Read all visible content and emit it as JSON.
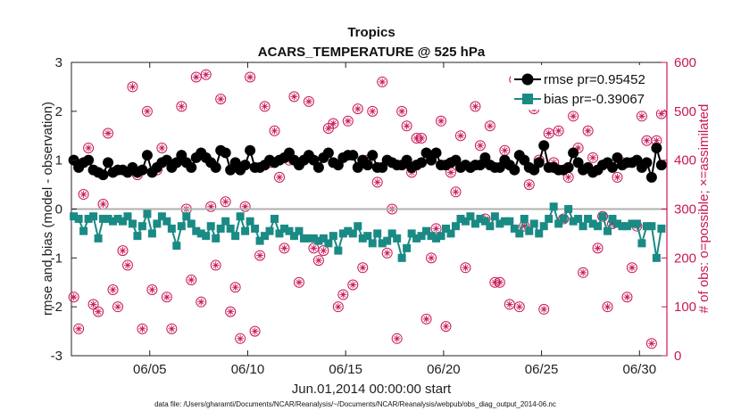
{
  "chart_data": {
    "type": "line",
    "title": "Tropics",
    "subtitle": "ACARS_TEMPERATURE @ 525 hPa",
    "xlabel": "Jun.01,2014 00:00:00 start",
    "ylabel": "rmse and bias (model - observation)",
    "y2label": "# of obs: o=possible; ×=assimilated",
    "xlim": [
      1,
      31.4
    ],
    "ylim": [
      -3,
      3
    ],
    "y2lim": [
      0,
      600
    ],
    "x_ticks": [
      5,
      10,
      15,
      20,
      25,
      30
    ],
    "x_tick_labels": [
      "06/05",
      "06/10",
      "06/15",
      "06/20",
      "06/25",
      "06/30"
    ],
    "y_ticks": [
      -3,
      -2,
      -1,
      0,
      1,
      2,
      3
    ],
    "y2_ticks": [
      0,
      100,
      200,
      300,
      400,
      500,
      600
    ],
    "grid": false,
    "legend": "top-right",
    "colors": {
      "rmse": "#000000",
      "bias": "#1a8a84",
      "obs": "#c8185a",
      "zero": "#b0b0b0"
    },
    "footnote": "data file: /Users/gharamti/Documents/NCAR/Reanalysis/~/Documents/NCAR/Reanalysis/webpub/obs_diag_output_2014-06.nc",
    "series": [
      {
        "name": "rmse pr=0.95452",
        "x": [
          1.12,
          1.37,
          1.62,
          1.87,
          2.12,
          2.37,
          2.62,
          2.87,
          3.12,
          3.37,
          3.62,
          3.87,
          4.12,
          4.37,
          4.62,
          4.87,
          5.12,
          5.37,
          5.62,
          5.87,
          6.12,
          6.37,
          6.62,
          6.87,
          7.12,
          7.37,
          7.62,
          7.87,
          8.12,
          8.37,
          8.62,
          8.87,
          9.12,
          9.37,
          9.62,
          9.87,
          10.12,
          10.37,
          10.62,
          10.87,
          11.12,
          11.37,
          11.62,
          11.87,
          12.12,
          12.37,
          12.62,
          12.87,
          13.12,
          13.37,
          13.62,
          13.87,
          14.12,
          14.37,
          14.62,
          14.87,
          15.12,
          15.37,
          15.62,
          15.87,
          16.12,
          16.37,
          16.62,
          16.87,
          17.12,
          17.37,
          17.62,
          17.87,
          18.12,
          18.37,
          18.62,
          18.87,
          19.12,
          19.37,
          19.62,
          19.87,
          20.12,
          20.37,
          20.62,
          20.87,
          21.12,
          21.37,
          21.62,
          21.87,
          22.12,
          22.37,
          22.62,
          22.87,
          23.12,
          23.37,
          23.62,
          23.87,
          24.12,
          24.37,
          24.62,
          24.87,
          25.12,
          25.37,
          25.62,
          25.87,
          26.12,
          26.37,
          26.62,
          26.87,
          27.12,
          27.37,
          27.62,
          27.87,
          28.12,
          28.37,
          28.62,
          28.87,
          29.12,
          29.37,
          29.62,
          29.87,
          30.12,
          30.37,
          30.62,
          30.87,
          31.12
        ],
        "values": [
          1.0,
          0.85,
          0.95,
          1.0,
          0.8,
          0.75,
          0.7,
          0.95,
          0.75,
          0.8,
          0.8,
          0.75,
          0.85,
          0.75,
          0.8,
          1.1,
          0.75,
          0.85,
          0.95,
          1.0,
          0.85,
          0.95,
          1.1,
          0.95,
          0.85,
          1.05,
          1.15,
          1.05,
          0.95,
          0.85,
          1.2,
          1.15,
          0.8,
          0.95,
          0.8,
          0.9,
          1.2,
          0.85,
          0.85,
          0.9,
          1.0,
          0.95,
          1.0,
          1.05,
          1.15,
          1.0,
          0.9,
          1.0,
          1.1,
          1.0,
          0.85,
          1.05,
          1.15,
          0.95,
          0.9,
          1.05,
          1.1,
          1.1,
          0.85,
          1.0,
          0.9,
          1.1,
          0.85,
          0.85,
          1.0,
          0.95,
          0.9,
          0.9,
          1.0,
          0.85,
          0.9,
          0.95,
          1.15,
          1.0,
          1.15,
          0.9,
          0.9,
          0.95,
          1.0,
          0.85,
          0.9,
          0.85,
          0.9,
          0.9,
          1.05,
          0.9,
          0.85,
          0.85,
          1.0,
          0.9,
          0.8,
          1.1,
          1.0,
          0.85,
          0.8,
          0.95,
          1.3,
          0.85,
          0.85,
          0.8,
          0.8,
          0.85,
          1.15,
          0.95,
          0.8,
          0.85,
          0.75,
          0.8,
          0.9,
          0.95,
          0.85,
          1.05,
          0.9,
          0.95,
          0.95,
          1.0,
          0.85,
          0.95,
          0.65,
          1.25,
          0.9
        ],
        "marker": "circle"
      },
      {
        "name": "bias pr=-0.39067",
        "x": [
          1.12,
          1.37,
          1.62,
          1.87,
          2.12,
          2.37,
          2.62,
          2.87,
          3.12,
          3.37,
          3.62,
          3.87,
          4.12,
          4.37,
          4.62,
          4.87,
          5.12,
          5.37,
          5.62,
          5.87,
          6.12,
          6.37,
          6.62,
          6.87,
          7.12,
          7.37,
          7.62,
          7.87,
          8.12,
          8.37,
          8.62,
          8.87,
          9.12,
          9.37,
          9.62,
          9.87,
          10.12,
          10.37,
          10.62,
          10.87,
          11.12,
          11.37,
          11.62,
          11.87,
          12.12,
          12.37,
          12.62,
          12.87,
          13.12,
          13.37,
          13.62,
          13.87,
          14.12,
          14.37,
          14.62,
          14.87,
          15.12,
          15.37,
          15.62,
          15.87,
          16.12,
          16.37,
          16.62,
          16.87,
          17.12,
          17.37,
          17.62,
          17.87,
          18.12,
          18.37,
          18.62,
          18.87,
          19.12,
          19.37,
          19.62,
          19.87,
          20.12,
          20.37,
          20.62,
          20.87,
          21.12,
          21.37,
          21.62,
          21.87,
          22.12,
          22.37,
          22.62,
          22.87,
          23.12,
          23.37,
          23.62,
          23.87,
          24.12,
          24.37,
          24.62,
          24.87,
          25.12,
          25.37,
          25.62,
          25.87,
          26.12,
          26.37,
          26.62,
          26.87,
          27.12,
          27.37,
          27.62,
          27.87,
          28.12,
          28.37,
          28.62,
          28.87,
          29.12,
          29.37,
          29.62,
          29.87,
          30.12,
          30.37,
          30.62,
          30.87,
          31.12
        ],
        "values": [
          -0.15,
          -0.2,
          -0.45,
          -0.2,
          -0.15,
          -0.6,
          -0.2,
          -0.2,
          -0.25,
          -0.2,
          -0.25,
          -0.15,
          -0.3,
          -0.55,
          -0.35,
          -0.1,
          -0.5,
          -0.3,
          -0.15,
          -0.25,
          -0.4,
          -0.75,
          -0.35,
          -0.15,
          -0.3,
          -0.45,
          -0.5,
          -0.55,
          -0.35,
          -0.6,
          -0.4,
          -0.25,
          -0.4,
          -0.55,
          -0.15,
          -0.45,
          -0.25,
          -0.4,
          -0.65,
          -0.55,
          -0.45,
          -0.2,
          -0.5,
          -0.4,
          -0.45,
          -0.55,
          -0.45,
          -0.6,
          -0.6,
          -0.6,
          -0.65,
          -0.6,
          -0.7,
          -0.55,
          -0.85,
          -0.5,
          -0.45,
          -0.5,
          -0.35,
          -0.6,
          -0.55,
          -0.7,
          -0.5,
          -0.7,
          -0.65,
          -0.5,
          -0.6,
          -1.0,
          -0.8,
          -0.5,
          -0.6,
          -0.55,
          -0.45,
          -0.55,
          -0.6,
          -0.55,
          -0.4,
          -0.5,
          -0.35,
          -0.2,
          -0.25,
          -0.15,
          -0.3,
          -0.2,
          -0.25,
          -0.35,
          -0.15,
          -0.3,
          -0.25,
          -0.25,
          -0.4,
          -0.5,
          -0.2,
          -0.45,
          -0.3,
          -0.5,
          -0.35,
          -0.2,
          0.05,
          -0.3,
          -0.2,
          0.0,
          -0.25,
          -0.2,
          -0.35,
          -0.2,
          -0.3,
          -0.35,
          -0.15,
          -0.45,
          -0.2,
          -0.3,
          -0.35,
          -0.35,
          -0.3,
          -0.3,
          -0.7,
          -0.35,
          -0.35,
          -1.0,
          -0.4
        ],
        "marker": "square"
      },
      {
        "name": "obs possible / assimilated",
        "axis": "right",
        "x": [
          1.12,
          1.37,
          1.62,
          1.87,
          2.12,
          2.37,
          2.62,
          2.87,
          3.12,
          3.37,
          3.62,
          3.87,
          4.12,
          4.37,
          4.62,
          4.87,
          5.12,
          5.37,
          5.62,
          5.87,
          6.12,
          6.37,
          6.62,
          6.87,
          7.12,
          7.37,
          7.62,
          7.87,
          8.12,
          8.37,
          8.62,
          8.87,
          9.12,
          9.37,
          9.62,
          9.87,
          10.12,
          10.37,
          10.62,
          10.87,
          11.12,
          11.37,
          11.62,
          11.87,
          12.12,
          12.37,
          12.62,
          12.87,
          13.12,
          13.37,
          13.62,
          13.87,
          14.12,
          14.37,
          14.62,
          14.87,
          15.12,
          15.37,
          15.62,
          15.87,
          16.12,
          16.37,
          16.62,
          16.87,
          17.12,
          17.37,
          17.62,
          17.87,
          18.12,
          18.37,
          18.62,
          18.87,
          19.12,
          19.37,
          19.62,
          19.87,
          20.12,
          20.37,
          20.62,
          20.87,
          21.12,
          21.37,
          21.62,
          21.87,
          22.12,
          22.37,
          22.62,
          22.87,
          23.12,
          23.37,
          23.62,
          23.87,
          24.12,
          24.37,
          24.62,
          24.87,
          25.12,
          25.37,
          25.62,
          25.87,
          26.12,
          26.37,
          26.62,
          26.87,
          27.12,
          27.37,
          27.62,
          27.87,
          28.12,
          28.37,
          28.62,
          28.87,
          29.12,
          29.37,
          29.62,
          29.87,
          30.12,
          30.37,
          30.62,
          30.87,
          31.12
        ],
        "possible": [
          120,
          55,
          330,
          425,
          105,
          90,
          310,
          455,
          135,
          100,
          215,
          185,
          550,
          370,
          55,
          500,
          135,
          380,
          425,
          120,
          55,
          395,
          510,
          300,
          155,
          570,
          110,
          575,
          305,
          185,
          525,
          315,
          90,
          140,
          35,
          305,
          570,
          50,
          205,
          510,
          395,
          460,
          365,
          220,
          400,
          530,
          150,
          400,
          520,
          220,
          195,
          215,
          465,
          475,
          100,
          125,
          480,
          145,
          505,
          180,
          400,
          500,
          355,
          560,
          210,
          300,
          35,
          500,
          470,
          375,
          445,
          445,
          75,
          200,
          260,
          480,
          60,
          375,
          335,
          450,
          180,
          385,
          510,
          430,
          280,
          470,
          150,
          150,
          420,
          105,
          565,
          100,
          265,
          350,
          505,
          400,
          95,
          455,
          395,
          460,
          280,
          365,
          490,
          425,
          170,
          460,
          405,
          220,
          285,
          100,
          270,
          365,
          395,
          120,
          180,
          265,
          490,
          440,
          25,
          440,
          495
        ],
        "assimilated": [
          120,
          55,
          330,
          425,
          105,
          90,
          310,
          455,
          135,
          100,
          215,
          185,
          550,
          370,
          55,
          500,
          135,
          380,
          425,
          120,
          55,
          395,
          510,
          300,
          155,
          570,
          110,
          575,
          305,
          185,
          525,
          315,
          90,
          140,
          35,
          305,
          570,
          50,
          205,
          510,
          395,
          460,
          365,
          220,
          400,
          530,
          150,
          400,
          520,
          220,
          195,
          215,
          465,
          475,
          100,
          125,
          480,
          145,
          505,
          180,
          400,
          500,
          355,
          560,
          210,
          300,
          35,
          500,
          470,
          375,
          445,
          445,
          75,
          200,
          260,
          480,
          60,
          375,
          335,
          450,
          180,
          385,
          510,
          430,
          280,
          470,
          150,
          150,
          420,
          105,
          565,
          100,
          265,
          350,
          505,
          400,
          95,
          455,
          395,
          460,
          280,
          365,
          490,
          425,
          170,
          460,
          405,
          220,
          285,
          100,
          270,
          365,
          395,
          120,
          180,
          265,
          490,
          440,
          25,
          440,
          495
        ],
        "marker": "circle-star"
      }
    ]
  }
}
